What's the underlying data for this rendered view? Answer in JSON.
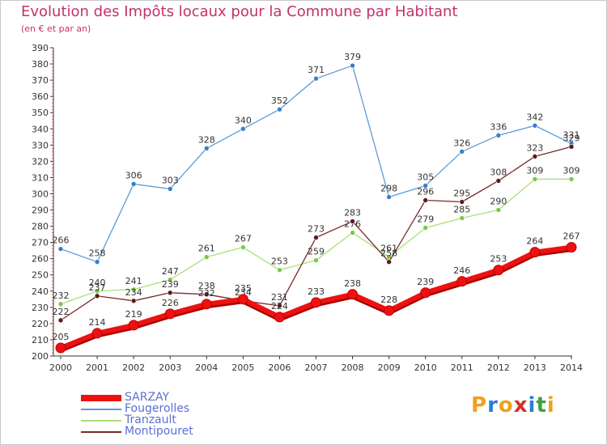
{
  "title": "Evolution des Impôts locaux pour la Commune par Habitant",
  "subtitle": "(en € et par an)",
  "logo": {
    "text": "Proxiti",
    "letters": [
      "P",
      "r",
      "o",
      "x",
      "i",
      "t",
      "i"
    ],
    "colors": [
      "#f0a020",
      "#2a7fd0",
      "#f0a020",
      "#d03030",
      "#2a7fd0",
      "#40a040",
      "#f0a020"
    ]
  },
  "chart_data": {
    "type": "line",
    "x": [
      2000,
      2001,
      2002,
      2003,
      2004,
      2005,
      2006,
      2007,
      2008,
      2009,
      2010,
      2011,
      2012,
      2013,
      2014
    ],
    "ylim": [
      200,
      390
    ],
    "yticks": [
      200,
      210,
      220,
      230,
      240,
      250,
      260,
      270,
      280,
      290,
      300,
      310,
      320,
      330,
      340,
      350,
      360,
      370,
      380,
      390
    ],
    "grid": false,
    "legend_position": "bottom-left",
    "series": [
      {
        "name": "Fougerolles",
        "color": "#5b9bd5",
        "point_color": "#3a7dc8",
        "values": [
          266,
          258,
          306,
          303,
          328,
          340,
          352,
          371,
          379,
          298,
          305,
          326,
          336,
          342,
          331
        ]
      },
      {
        "name": "Tranzault",
        "color": "#a8e07a",
        "point_color": "#78c848",
        "values": [
          232,
          240,
          241,
          247,
          261,
          267,
          253,
          259,
          276,
          261,
          279,
          285,
          290,
          309,
          309
        ]
      },
      {
        "name": "Montipouret",
        "color": "#7a2a2a",
        "point_color": "#5a1a1a",
        "values": [
          222,
          237,
          234,
          239,
          238,
          234,
          231,
          273,
          283,
          258,
          296,
          295,
          308,
          323,
          329
        ]
      },
      {
        "name": "SARZAY",
        "color": "#ee1111",
        "point_color": "#ee1111",
        "values": [
          205,
          214,
          219,
          226,
          232,
          235,
          224,
          233,
          238,
          228,
          239,
          246,
          253,
          264,
          267
        ]
      }
    ],
    "legend_order": [
      "SARZAY",
      "Fougerolles",
      "Tranzault",
      "Montipouret"
    ]
  }
}
